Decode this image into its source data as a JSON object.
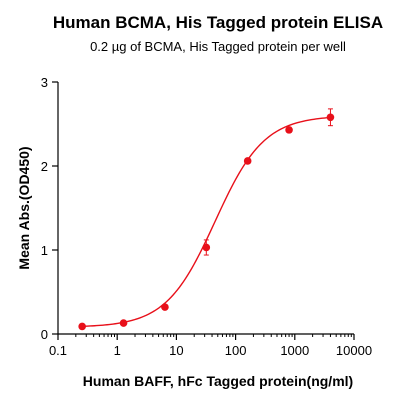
{
  "chart_data": {
    "type": "scatter",
    "title": "Human BCMA, His Tagged protein ELISA",
    "subtitle": "0.2 µg of BCMA, His Tagged protein per well",
    "xlabel": "Human BAFF, hFc Tagged protein(ng/ml)",
    "ylabel": "Mean Abs.(OD450)",
    "xscale": "log",
    "xlim": [
      0.1,
      10000
    ],
    "ylim": [
      0,
      3
    ],
    "xticks": [
      0.1,
      1,
      10,
      100,
      1000,
      10000
    ],
    "xtick_labels": [
      "0.1",
      "1",
      "10",
      "100",
      "1000",
      "10000"
    ],
    "yticks": [
      0,
      1,
      2,
      3
    ],
    "ytick_labels": [
      "0",
      "1",
      "2",
      "3"
    ],
    "grid": false,
    "color": "#e8101a",
    "points": [
      {
        "x": 0.256,
        "y": 0.09,
        "err": 0.01
      },
      {
        "x": 1.28,
        "y": 0.13,
        "err": 0.01
      },
      {
        "x": 6.4,
        "y": 0.32,
        "err": 0.02
      },
      {
        "x": 32,
        "y": 1.03,
        "err": 0.09
      },
      {
        "x": 160,
        "y": 2.06,
        "err": 0.03
      },
      {
        "x": 800,
        "y": 2.43,
        "err": 0.03
      },
      {
        "x": 4000,
        "y": 2.58,
        "err": 0.1
      }
    ],
    "fit": {
      "bottom": 0.08,
      "top": 2.6,
      "ec50": 45,
      "hill": 1.05
    }
  }
}
